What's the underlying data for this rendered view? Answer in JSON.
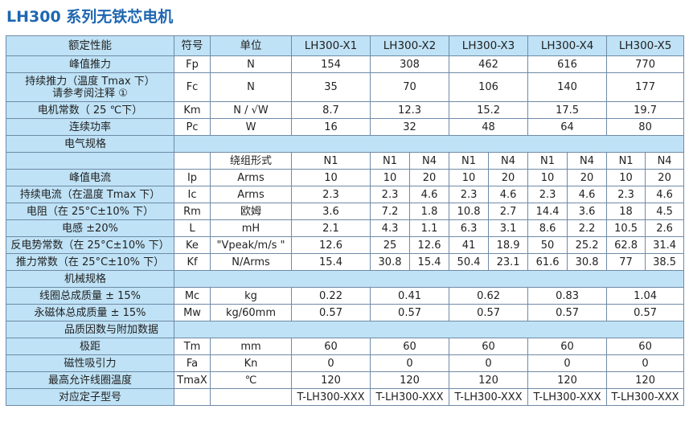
{
  "title": "LH300 系列无铁芯电机",
  "header": [
    "额定性能",
    "符号",
    "单位",
    "LH300-X1",
    "LH300-X2",
    "LH300-X3",
    "LH300-X4",
    "LH300-X5"
  ],
  "rated_rows": [
    {
      "label": "峰值推力",
      "symbol": "Fp",
      "unit": "N",
      "values": [
        "154",
        "308",
        "462",
        "616",
        "770"
      ]
    },
    {
      "label": "持续推力（温度 Tmax 下）",
      "label2": "请参考阅注释 ①",
      "symbol": "Fc",
      "unit": "N",
      "values": [
        "35",
        "70",
        "106",
        "140",
        "177"
      ]
    },
    {
      "label": "电机常数（ 25 ℃下）",
      "symbol": "Km",
      "unit": "N / √W",
      "values": [
        "8.7",
        "12.3",
        "15.2",
        "17.5",
        "19.7"
      ]
    },
    {
      "label": "连续功率",
      "symbol": "Pc",
      "unit": "W",
      "values": [
        "16",
        "32",
        "48",
        "64",
        "80"
      ]
    }
  ],
  "section_electrical": "电气规格",
  "winding_row": {
    "unit": "绕组形式",
    "values": [
      "N1",
      "N1",
      "N4",
      "N1",
      "N4",
      "N1",
      "N4",
      "N1",
      "N4"
    ]
  },
  "electrical_rows": [
    {
      "label": "峰值电流",
      "symbol": "Ip",
      "unit": "Arms",
      "values": [
        "10",
        "10",
        "20",
        "10",
        "20",
        "10",
        "20",
        "10",
        "20"
      ]
    },
    {
      "label": "持续电流（在温度 Tmax 下）",
      "symbol": "Ic",
      "unit": "Arms",
      "values": [
        "2.3",
        "2.3",
        "4.6",
        "2.3",
        "4.6",
        "2.3",
        "4.6",
        "2.3",
        "4.6"
      ]
    },
    {
      "label": "电阻（在 25°C±10% 下）",
      "symbol": "Rm",
      "unit": "欧姆",
      "values": [
        "3.6",
        "7.2",
        "1.8",
        "10.8",
        "2.7",
        "14.4",
        "3.6",
        "18",
        "4.5"
      ]
    },
    {
      "label": "电感 ±20%",
      "symbol": "L",
      "unit": "mH",
      "values": [
        "2.1",
        "4.3",
        "1.1",
        "6.3",
        "3.1",
        "8.6",
        "2.2",
        "10.5",
        "2.6"
      ]
    },
    {
      "label": "反电势常数（在 25°C±10% 下）",
      "symbol": "Ke",
      "unit": "\"Vpeak/m/s \"",
      "values": [
        "12.6",
        "25",
        "12.6",
        "41",
        "18.9",
        "50",
        "25.2",
        "62.8",
        "31.4"
      ]
    },
    {
      "label": "推力常数（在 25°C±10% 下）",
      "symbol": "Kf",
      "unit": "N/Arms",
      "values": [
        "15.4",
        "30.8",
        "15.4",
        "50.4",
        "23.1",
        "61.6",
        "30.8",
        "77",
        "38.5"
      ]
    }
  ],
  "section_mechanical": "机械规格",
  "mechanical_rows": [
    {
      "label": "线圈总成质量 ± 15%",
      "symbol": "Mc",
      "unit": "kg",
      "values": [
        "0.22",
        "0.41",
        "0.62",
        "0.83",
        "1.04"
      ]
    },
    {
      "label": "永磁体总成质量 ± 15%",
      "symbol": "Mw",
      "unit": "kg/60mm",
      "values": [
        "0.57",
        "0.57",
        "0.57",
        "0.57",
        "0.57"
      ]
    }
  ],
  "section_quality": "品质因数与附加数据",
  "quality_rows": [
    {
      "label": "极距",
      "symbol": "Tm",
      "unit": "mm",
      "values": [
        "60",
        "60",
        "60",
        "60",
        "60"
      ]
    },
    {
      "label": "磁性吸引力",
      "symbol": "Fa",
      "unit": "Kn",
      "values": [
        "0",
        "0",
        "0",
        "0",
        "0"
      ]
    },
    {
      "label": "最高允许线圈温度",
      "symbol": "TmaX",
      "unit": "℃",
      "values": [
        "120",
        "120",
        "120",
        "120",
        "120"
      ]
    },
    {
      "label": "对应定子型号",
      "symbol": "",
      "unit": "",
      "values": [
        "T-LH300-XXX",
        "T-LH300-XXX",
        "T-LH300-XXX",
        "T-LH300-XXX",
        "T-LH300-XXX"
      ]
    }
  ]
}
